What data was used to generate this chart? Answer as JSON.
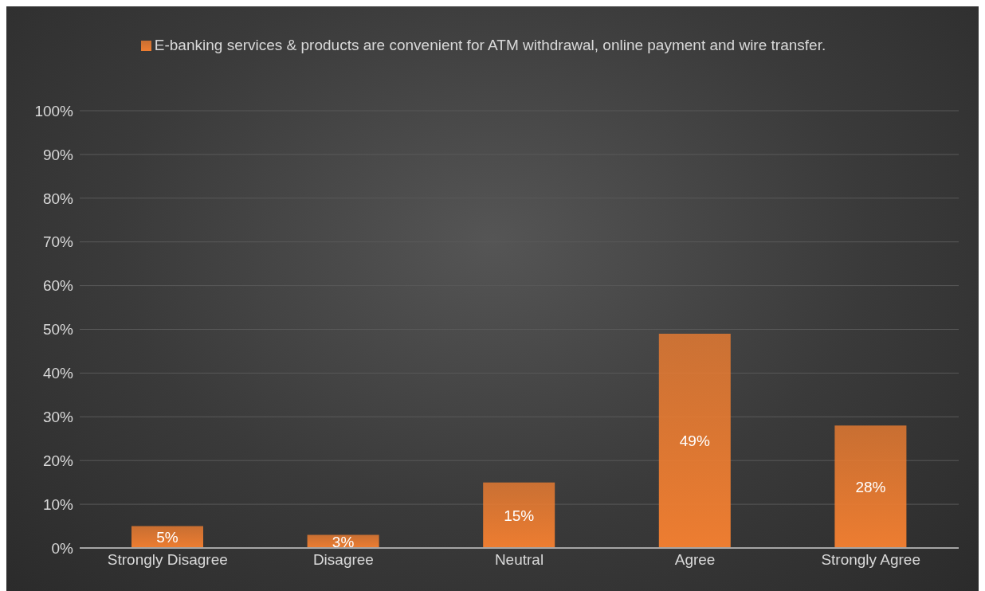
{
  "chart_data": {
    "type": "bar",
    "categories": [
      "Strongly Disagree",
      "Disagree",
      "Neutral",
      "Agree",
      "Strongly Agree"
    ],
    "series": [
      {
        "name": "E-banking services & products are convenient for ATM withdrawal, online payment and wire transfer.",
        "color": "#ed7d31",
        "values": [
          5,
          3,
          15,
          49,
          28
        ],
        "value_labels": [
          "5%",
          "3%",
          "15%",
          "49%",
          "28%"
        ]
      }
    ],
    "ylim": [
      0,
      100
    ],
    "yticks": [
      {
        "value": 0,
        "label": "0%"
      },
      {
        "value": 10,
        "label": "10%"
      },
      {
        "value": 20,
        "label": "20%"
      },
      {
        "value": 30,
        "label": "30%"
      },
      {
        "value": 40,
        "label": "40%"
      },
      {
        "value": 50,
        "label": "50%"
      },
      {
        "value": 60,
        "label": "60%"
      },
      {
        "value": 70,
        "label": "70%"
      },
      {
        "value": 80,
        "label": "80%"
      },
      {
        "value": 90,
        "label": "90%"
      },
      {
        "value": 100,
        "label": "100%"
      }
    ],
    "grid": "y",
    "legend": "top"
  }
}
